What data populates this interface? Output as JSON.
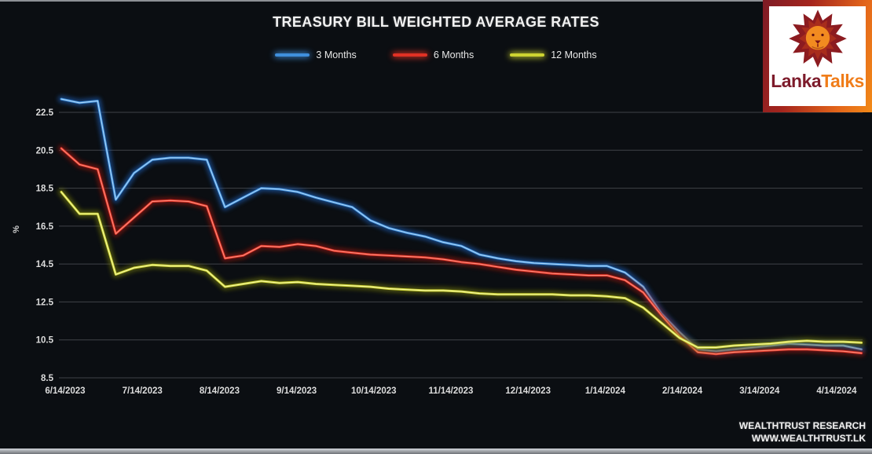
{
  "title": "TREASURY BILL WEIGHTED AVERAGE RATES",
  "y_axis_label": "%",
  "footer": {
    "research": "WEALTHTRUST RESEARCH",
    "website": "WWW.WEALTHTRUST.LK"
  },
  "logo": {
    "name": "LankaTalks",
    "part1": "Lanka",
    "part2": "Talks",
    "color1": "#7d1b2b",
    "color2": "#f07d1a"
  },
  "colors": {
    "background": "#0b0e12",
    "grid": "#4c5056",
    "tick_text": "#dcdcdc",
    "series_3m": "#3f8fdc",
    "series_6m": "#e03124",
    "series_12m": "#cdd331"
  },
  "chart_data": {
    "type": "line",
    "title": "TREASURY BILL WEIGHTED AVERAGE RATES",
    "xlabel": "",
    "ylabel": "%",
    "ylim": [
      8.5,
      24.0
    ],
    "y_ticks": [
      8.5,
      10.5,
      12.5,
      14.5,
      16.5,
      18.5,
      20.5,
      22.5
    ],
    "x_tick_labels": [
      "6/14/2023",
      "7/14/2023",
      "8/14/2023",
      "9/14/2023",
      "10/14/2023",
      "11/14/2023",
      "12/14/2023",
      "1/14/2024",
      "2/14/2024",
      "3/14/2024",
      "4/14/2024"
    ],
    "grid": true,
    "legend_position": "top-center",
    "x": [
      "6/14/2023",
      "6/21/2023",
      "6/28/2023",
      "7/5/2023",
      "7/12/2023",
      "7/19/2023",
      "7/26/2023",
      "8/2/2023",
      "8/9/2023",
      "8/16/2023",
      "8/23/2023",
      "8/30/2023",
      "9/6/2023",
      "9/13/2023",
      "9/20/2023",
      "9/27/2023",
      "10/4/2023",
      "10/11/2023",
      "10/18/2023",
      "10/25/2023",
      "11/1/2023",
      "11/8/2023",
      "11/15/2023",
      "11/22/2023",
      "11/29/2023",
      "12/6/2023",
      "12/13/2023",
      "12/20/2023",
      "12/27/2023",
      "1/3/2024",
      "1/10/2024",
      "1/17/2024",
      "1/24/2024",
      "1/31/2024",
      "2/7/2024",
      "2/14/2024",
      "2/21/2024",
      "2/28/2024",
      "3/6/2024",
      "3/13/2024",
      "3/20/2024",
      "3/27/2024",
      "4/3/2024",
      "4/10/2024",
      "4/17/2024"
    ],
    "series": [
      {
        "name": "3 Months",
        "color": "#3f8fdc",
        "glow": "#1d5bb0",
        "highlight": "#b8defa",
        "values": [
          23.2,
          23.0,
          23.1,
          17.9,
          19.3,
          20.0,
          20.1,
          20.1,
          20.0,
          17.5,
          18.0,
          18.5,
          18.45,
          18.3,
          18.0,
          17.75,
          17.5,
          16.8,
          16.4,
          16.15,
          15.95,
          15.65,
          15.45,
          15.0,
          14.8,
          14.65,
          14.55,
          14.5,
          14.45,
          14.4,
          14.4,
          14.05,
          13.3,
          11.9,
          10.9,
          10.0,
          9.9,
          10.0,
          10.1,
          10.2,
          10.3,
          10.25,
          10.2,
          10.2,
          10.0
        ]
      },
      {
        "name": "6 Months",
        "color": "#e03124",
        "glow": "#8f1410",
        "highlight": "#ff9a8a",
        "values": [
          20.6,
          19.75,
          19.5,
          16.1,
          16.95,
          17.8,
          17.85,
          17.8,
          17.55,
          14.8,
          14.95,
          15.45,
          15.4,
          15.55,
          15.45,
          15.2,
          15.1,
          15.0,
          14.95,
          14.9,
          14.85,
          14.75,
          14.6,
          14.5,
          14.35,
          14.2,
          14.1,
          14.0,
          13.95,
          13.9,
          13.9,
          13.65,
          13.0,
          11.8,
          10.7,
          9.85,
          9.75,
          9.85,
          9.9,
          9.95,
          10.0,
          10.0,
          9.95,
          9.9,
          9.8
        ]
      },
      {
        "name": "12 Months",
        "color": "#cdd331",
        "glow": "#6f7410",
        "highlight": "#f8fab2",
        "values": [
          18.3,
          17.15,
          17.15,
          13.95,
          14.3,
          14.45,
          14.4,
          14.4,
          14.15,
          13.3,
          13.45,
          13.6,
          13.5,
          13.55,
          13.45,
          13.4,
          13.35,
          13.3,
          13.2,
          13.15,
          13.1,
          13.1,
          13.05,
          12.95,
          12.9,
          12.9,
          12.9,
          12.9,
          12.85,
          12.85,
          12.8,
          12.7,
          12.2,
          11.4,
          10.6,
          10.1,
          10.1,
          10.2,
          10.25,
          10.3,
          10.4,
          10.45,
          10.4,
          10.4,
          10.35
        ]
      }
    ]
  }
}
